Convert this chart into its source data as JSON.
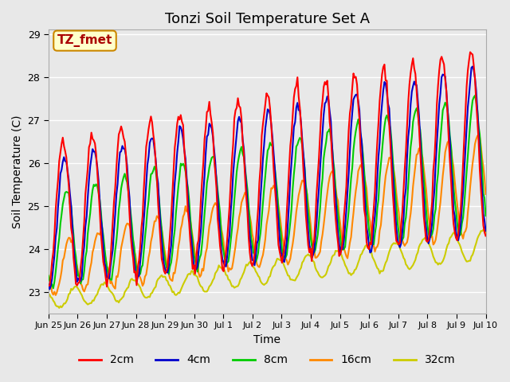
{
  "title": "Tonzi Soil Temperature Set A",
  "xlabel": "Time",
  "ylabel": "Soil Temperature (C)",
  "annotation_text": "TZ_fmet",
  "annotation_bg": "#ffffcc",
  "annotation_border": "#cc8800",
  "ylim": [
    22.5,
    29.1
  ],
  "line_colors": {
    "2cm": "#ff0000",
    "4cm": "#0000cc",
    "8cm": "#00cc00",
    "16cm": "#ff8800",
    "32cm": "#cccc00"
  },
  "line_widths": {
    "2cm": 1.5,
    "4cm": 1.5,
    "8cm": 1.5,
    "16cm": 1.5,
    "32cm": 1.5
  },
  "bg_color": "#e8e8e8",
  "plot_bg": "#e8e8e8",
  "grid_color": "#ffffff",
  "tick_labels": [
    "Jun 25",
    "Jun 26",
    "Jun 27",
    "Jun 28",
    "Jun 29",
    "Jun 30",
    "Jul 1",
    "Jul 2",
    "Jul 3",
    "Jul 4",
    "Jul 5",
    "Jul 6",
    "Jul 7",
    "Jul 8",
    "Jul 9",
    "Jul 10"
  ],
  "n_points": 368
}
